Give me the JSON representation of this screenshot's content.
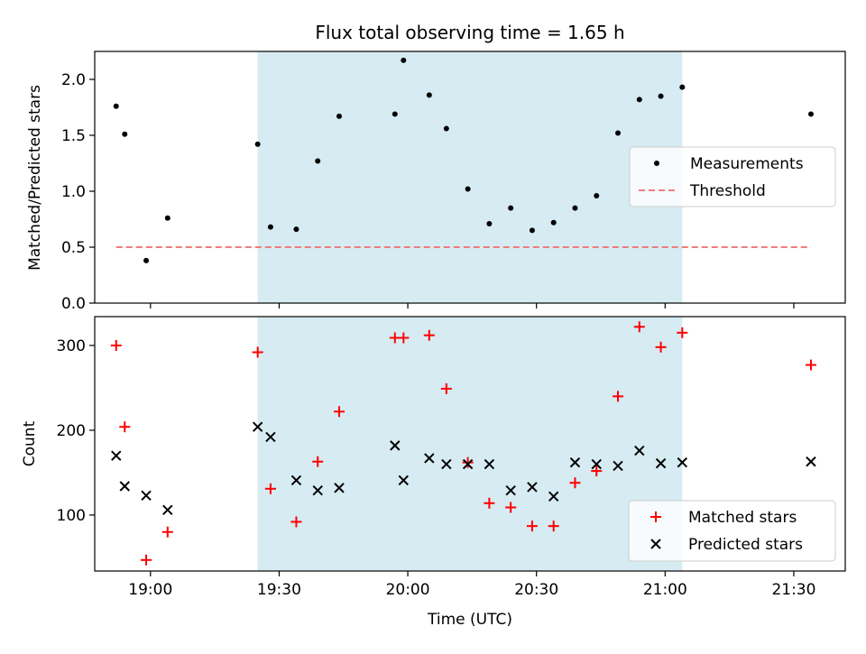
{
  "chart_data": [
    {
      "type": "scatter",
      "title": "Flux total observing time = 1.65 h",
      "xlabel": "",
      "ylabel": "Matched/Predicted stars",
      "ylim": [
        0,
        2.25
      ],
      "y_ticks": [
        "0.0",
        "0.5",
        "1.0",
        "1.5",
        "2.0"
      ],
      "xlim": [
        "18:47",
        "21:42"
      ],
      "shaded_interval": [
        "19:25",
        "21:04"
      ],
      "threshold": {
        "value": 0.5,
        "x_start": "18:52",
        "x_end": "21:34"
      },
      "legend": {
        "position": "center-right",
        "entries": [
          "Measurements",
          "Threshold"
        ]
      },
      "colors": {
        "measurements": "#000000",
        "threshold": "#f07c7c",
        "shade": "#add8e6"
      },
      "series": [
        {
          "name": "Measurements",
          "x": [
            "18:52",
            "18:54",
            "18:59",
            "19:04",
            "19:25",
            "19:28",
            "19:34",
            "19:39",
            "19:44",
            "19:57",
            "19:59",
            "20:05",
            "20:09",
            "20:14",
            "20:19",
            "20:24",
            "20:29",
            "20:34",
            "20:39",
            "20:44",
            "20:49",
            "20:54",
            "20:59",
            "21:04",
            "21:34"
          ],
          "y": [
            1.76,
            1.51,
            0.38,
            0.76,
            1.42,
            0.68,
            0.66,
            1.27,
            1.67,
            1.69,
            2.17,
            1.86,
            1.56,
            1.02,
            0.71,
            0.85,
            0.65,
            0.72,
            0.85,
            0.96,
            1.52,
            1.82,
            1.85,
            1.93,
            1.69
          ]
        }
      ]
    },
    {
      "type": "scatter",
      "title": "",
      "xlabel": "Time (UTC)",
      "ylabel": "Count",
      "ylim": [
        34,
        334
      ],
      "y_ticks": [
        "100",
        "200",
        "300"
      ],
      "x_ticks": [
        "19:00",
        "19:30",
        "20:00",
        "20:30",
        "21:00",
        "21:30"
      ],
      "xlim": [
        "18:47",
        "21:42"
      ],
      "shaded_interval": [
        "19:25",
        "21:04"
      ],
      "legend": {
        "position": "bottom-right",
        "entries": [
          "Matched stars",
          "Predicted stars"
        ]
      },
      "colors": {
        "matched": "#ff0000",
        "predicted": "#000000",
        "shade": "#add8e6"
      },
      "x": [
        "18:52",
        "18:54",
        "18:59",
        "19:04",
        "19:25",
        "19:28",
        "19:34",
        "19:39",
        "19:44",
        "19:57",
        "19:59",
        "20:05",
        "20:09",
        "20:14",
        "20:19",
        "20:24",
        "20:29",
        "20:34",
        "20:39",
        "20:44",
        "20:49",
        "20:54",
        "20:59",
        "21:04",
        "21:34"
      ],
      "series": [
        {
          "name": "Matched stars",
          "values": [
            300,
            204,
            47,
            80,
            292,
            131,
            92,
            163,
            222,
            309,
            309,
            312,
            249,
            162,
            114,
            109,
            87,
            87,
            138,
            152,
            240,
            322,
            298,
            315,
            277
          ]
        },
        {
          "name": "Predicted stars",
          "values": [
            170,
            134,
            123,
            106,
            204,
            192,
            141,
            129,
            132,
            182,
            141,
            167,
            160,
            160,
            160,
            129,
            133,
            122,
            162,
            160,
            158,
            176,
            161,
            162,
            163
          ]
        }
      ]
    }
  ]
}
